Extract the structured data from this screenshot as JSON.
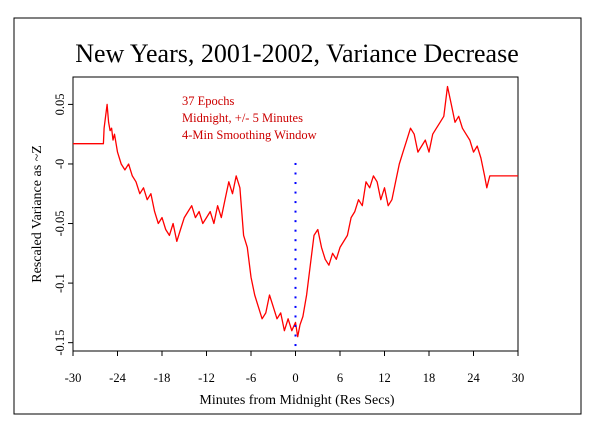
{
  "chart_data": {
    "type": "line",
    "title": "New Years, 2001-2002, Variance Decrease",
    "xlabel": "Minutes from Midnight (Res Secs)",
    "ylabel": "Rescaled Variance as ~Z",
    "xlim": [
      -30,
      30
    ],
    "ylim": [
      -0.157,
      0.073
    ],
    "xticks": [
      -30,
      -24,
      -18,
      -12,
      -6,
      0,
      6,
      12,
      18,
      24,
      30
    ],
    "yticks": [
      0.05,
      0,
      -0.05,
      -0.1,
      -0.15
    ],
    "xtick_labels": [
      "-30",
      "-24",
      "-18",
      "-12",
      "-6",
      "0",
      "6",
      "12",
      "18",
      "24",
      "30"
    ],
    "ytick_labels": [
      "0.05",
      "-0",
      "-0.05",
      "-0.1",
      "-0.15"
    ],
    "annotations": [
      "37 Epochs",
      "Midnight, +/- 5 Minutes",
      "4-Min Smoothing Window"
    ],
    "colors": {
      "line": "#ff0000",
      "annotation": "#cc0000",
      "marker": "#0000ff",
      "axis": "#000000"
    },
    "grid": false,
    "legend": "none",
    "series": [
      {
        "x": [
          -30,
          -25.9,
          -25.8,
          -25.6,
          -25.4,
          -25.2,
          -25.0,
          -24.8,
          -24.6,
          -24.4,
          -24.0,
          -23.5,
          -23.0,
          -22.5,
          -22.0,
          -21.5,
          -21.0,
          -20.5,
          -20.0,
          -19.5,
          -19.0,
          -18.5,
          -18.0,
          -17.5,
          -17.0,
          -16.5,
          -16.0,
          -15.5,
          -15.0,
          -14.5,
          -14.0,
          -13.5,
          -13.0,
          -12.5,
          -12.0,
          -11.5,
          -11.0,
          -10.5,
          -10.0,
          -9.5,
          -9.0,
          -8.5,
          -8.0,
          -7.5,
          -7.0,
          -6.5,
          -6.0,
          -5.5,
          -5.0,
          -4.5,
          -4.0,
          -3.5,
          -3.0,
          -2.5,
          -2.0,
          -1.5,
          -1.0,
          -0.5,
          0.0,
          0.3,
          0.6,
          1.0,
          1.5,
          2.0,
          2.5,
          3.0,
          3.5,
          4.0,
          4.5,
          5.0,
          5.5,
          6.0,
          6.5,
          7.0,
          7.5,
          8.0,
          8.5,
          9.0,
          9.5,
          10.0,
          10.5,
          11.0,
          11.5,
          12.0,
          12.5,
          13.0,
          13.5,
          14.0,
          14.5,
          15.0,
          15.5,
          16.0,
          16.5,
          17.0,
          17.5,
          18.0,
          18.5,
          19.0,
          19.5,
          20.0,
          20.5,
          21.0,
          21.5,
          22.0,
          22.5,
          23.0,
          23.5,
          24.0,
          24.5,
          25.0,
          25.5,
          25.8,
          26.0,
          26.2,
          30
        ],
        "y": [
          0.017,
          0.017,
          0.03,
          0.04,
          0.05,
          0.035,
          0.028,
          0.03,
          0.02,
          0.025,
          0.01,
          0.0,
          -0.005,
          0.0,
          -0.01,
          -0.015,
          -0.025,
          -0.02,
          -0.03,
          -0.025,
          -0.04,
          -0.05,
          -0.045,
          -0.055,
          -0.06,
          -0.05,
          -0.065,
          -0.055,
          -0.045,
          -0.04,
          -0.035,
          -0.045,
          -0.04,
          -0.05,
          -0.045,
          -0.04,
          -0.05,
          -0.035,
          -0.045,
          -0.03,
          -0.015,
          -0.025,
          -0.01,
          -0.02,
          -0.06,
          -0.07,
          -0.095,
          -0.11,
          -0.12,
          -0.13,
          -0.125,
          -0.11,
          -0.12,
          -0.13,
          -0.125,
          -0.14,
          -0.13,
          -0.14,
          -0.133,
          -0.145,
          -0.135,
          -0.128,
          -0.11,
          -0.085,
          -0.06,
          -0.055,
          -0.07,
          -0.08,
          -0.085,
          -0.075,
          -0.08,
          -0.07,
          -0.065,
          -0.06,
          -0.045,
          -0.04,
          -0.03,
          -0.035,
          -0.015,
          -0.02,
          -0.01,
          -0.015,
          -0.03,
          -0.02,
          -0.035,
          -0.03,
          -0.015,
          0.0,
          0.01,
          0.02,
          0.03,
          0.025,
          0.01,
          0.015,
          0.02,
          0.01,
          0.025,
          0.03,
          0.035,
          0.04,
          0.065,
          0.05,
          0.035,
          0.04,
          0.03,
          0.025,
          0.02,
          0.01,
          0.015,
          0.005,
          -0.01,
          -0.02,
          -0.015,
          -0.01,
          -0.01
        ]
      }
    ],
    "marker_series": {
      "x": 0,
      "y": [
        0.0,
        -0.008,
        -0.016,
        -0.024,
        -0.032,
        -0.04,
        -0.048,
        -0.056,
        -0.064,
        -0.072,
        -0.08,
        -0.088,
        -0.096,
        -0.104,
        -0.112,
        -0.12,
        -0.128,
        -0.136,
        -0.144,
        -0.152
      ]
    }
  }
}
